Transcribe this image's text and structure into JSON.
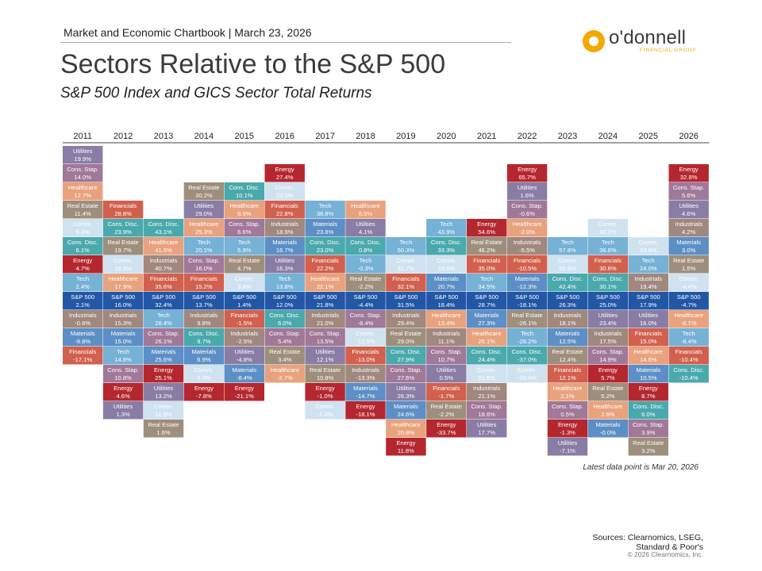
{
  "header": {
    "chartbook": "Market and Economic Chartbook | March 23, 2026",
    "logo_name": "o'donnell",
    "logo_sub": "FINANCIAL GROUP",
    "title": "Sectors Relative to the S&P 500",
    "subtitle": "S&P 500 Index and GICS Sector Total Returns"
  },
  "footer": {
    "note": "Latest data point is Mar 20, 2026",
    "sources_line1": "Sources: Clearnomics, LSEG,",
    "sources_line2": "Standard & Poor's",
    "copyright": "© 2026 Clearnomics, Inc."
  },
  "colors": {
    "Utilities": "#8a7da5",
    "Cons. Stap.": "#a07898",
    "Healthcare": "#e9a27e",
    "Real Estate": "#9e8e7c",
    "Comm.": "#d0e2f0",
    "Cons. Disc.": "#4aa9ad",
    "Energy": "#b5272f",
    "Tech": "#76b1d6",
    "S&P 500": "#2257a6",
    "Industrials": "#a0887e",
    "Materials": "#5c8fc5",
    "Financials": "#d2604e"
  },
  "chart_data": {
    "type": "table",
    "title": "Sectors Relative to the S&P 500",
    "subtitle": "S&P 500 Index and GICS Sector Total Returns",
    "benchmark": "S&P 500",
    "years": [
      {
        "year": "2011",
        "above": [
          [
            "Utilities",
            "19.9%"
          ],
          [
            "Cons. Stap.",
            "14.0%"
          ],
          [
            "Healthcare",
            "12.7%"
          ],
          [
            "Real Estate",
            "11.4%"
          ],
          [
            "Comm.",
            "6.3%"
          ],
          [
            "Cons. Disc.",
            "6.1%"
          ],
          [
            "Energy",
            "4.7%"
          ],
          [
            "Tech",
            "2.4%"
          ]
        ],
        "spx": "2.1%",
        "below": [
          [
            "Industrials",
            "-0.6%"
          ],
          [
            "Materials",
            "-9.8%"
          ],
          [
            "Financials",
            "-17.1%"
          ]
        ]
      },
      {
        "year": "2012",
        "above": [
          [
            "Financials",
            "28.8%"
          ],
          [
            "Cons. Disc.",
            "23.9%"
          ],
          [
            "Real Estate",
            "19.7%"
          ],
          [
            "Comm.",
            "18.3%"
          ],
          [
            "Healthcare",
            "17.9%"
          ]
        ],
        "spx": "16.0%",
        "below": [
          [
            "Industrials",
            "15.3%"
          ],
          [
            "Materials",
            "15.0%"
          ],
          [
            "Tech",
            "14.8%"
          ],
          [
            "Cons. Stap.",
            "10.8%"
          ],
          [
            "Energy",
            "4.6%"
          ],
          [
            "Utilities",
            "1.3%"
          ]
        ]
      },
      {
        "year": "2013",
        "above": [
          [
            "Cons. Disc.",
            "43.1%"
          ],
          [
            "Healthcare",
            "41.5%"
          ],
          [
            "Industrials",
            "40.7%"
          ],
          [
            "Financials",
            "35.6%"
          ]
        ],
        "spx": "32.4%",
        "below": [
          [
            "Tech",
            "28.4%"
          ],
          [
            "Cons. Stap.",
            "26.1%"
          ],
          [
            "Materials",
            "25.6%"
          ],
          [
            "Energy",
            "25.1%"
          ],
          [
            "Utilities",
            "13.2%"
          ],
          [
            "Comm.",
            "11.5%"
          ],
          [
            "Real Estate",
            "1.6%"
          ]
        ]
      },
      {
        "year": "2014",
        "above": [
          [
            "Real Estate",
            "30.2%"
          ],
          [
            "Utilities",
            "29.0%"
          ],
          [
            "Healthcare",
            "25.3%"
          ],
          [
            "Tech",
            "20.1%"
          ],
          [
            "Cons. Stap.",
            "16.0%"
          ],
          [
            "Financials",
            "15.2%"
          ]
        ],
        "spx": "13.7%",
        "below": [
          [
            "Industrials",
            "9.8%"
          ],
          [
            "Cons. Disc.",
            "9.7%"
          ],
          [
            "Materials",
            "6.9%"
          ],
          [
            "Comm.",
            "3.0%"
          ],
          [
            "Energy",
            "-7.8%"
          ]
        ]
      },
      {
        "year": "2015",
        "above": [
          [
            "Cons. Disc.",
            "10.1%"
          ],
          [
            "Healthcare",
            "6.9%"
          ],
          [
            "Cons. Stap.",
            "6.6%"
          ],
          [
            "Tech",
            "5.9%"
          ],
          [
            "Real Estate",
            "4.7%"
          ],
          [
            "Comm.",
            "3.4%"
          ]
        ],
        "spx": "1.4%",
        "below": [
          [
            "Financials",
            "-1.5%"
          ],
          [
            "Industrials",
            "-2.5%"
          ],
          [
            "Utilities",
            "-4.8%"
          ],
          [
            "Materials",
            "-8.4%"
          ],
          [
            "Energy",
            "-21.1%"
          ]
        ]
      },
      {
        "year": "2016",
        "above": [
          [
            "Energy",
            "27.4%"
          ],
          [
            "Comm.",
            "23.5%"
          ],
          [
            "Financials",
            "22.8%"
          ],
          [
            "Industrials",
            "18.9%"
          ],
          [
            "Materials",
            "16.7%"
          ],
          [
            "Utilities",
            "16.3%"
          ],
          [
            "Tech",
            "13.8%"
          ]
        ],
        "spx": "12.0%",
        "below": [
          [
            "Cons. Disc.",
            "6.0%"
          ],
          [
            "Cons. Stap.",
            "5.4%"
          ],
          [
            "Real Estate",
            "3.4%"
          ],
          [
            "Healthcare",
            "-2.7%"
          ]
        ]
      },
      {
        "year": "2017",
        "above": [
          [
            "Tech",
            "38.8%"
          ],
          [
            "Materials",
            "23.8%"
          ],
          [
            "Cons. Disc.",
            "23.0%"
          ],
          [
            "Financials",
            "22.2%"
          ],
          [
            "Healthcare",
            "22.1%"
          ]
        ],
        "spx": "21.8%",
        "below": [
          [
            "Industrials",
            "21.0%"
          ],
          [
            "Cons. Stap.",
            "13.5%"
          ],
          [
            "Utilities",
            "12.1%"
          ],
          [
            "Real Estate",
            "10.8%"
          ],
          [
            "Energy",
            "-1.0%"
          ],
          [
            "Comm.",
            "-1.3%"
          ]
        ]
      },
      {
        "year": "2018",
        "above": [
          [
            "Healthcare",
            "6.5%"
          ],
          [
            "Utilities",
            "4.1%"
          ],
          [
            "Cons. Disc.",
            "0.8%"
          ],
          [
            "Tech",
            "-0.3%"
          ],
          [
            "Real Estate",
            "-2.2%"
          ]
        ],
        "spx": "-4.4%",
        "below": [
          [
            "Cons. Stap.",
            "-8.4%"
          ],
          [
            "Comm.",
            "-12.5%"
          ],
          [
            "Financials",
            "-13.0%"
          ],
          [
            "Industrials",
            "-13.3%"
          ],
          [
            "Materials",
            "-14.7%"
          ],
          [
            "Energy",
            "-18.1%"
          ]
        ]
      },
      {
        "year": "2019",
        "above": [
          [
            "Tech",
            "50.3%"
          ],
          [
            "Comm.",
            "32.7%"
          ],
          [
            "Financials",
            "32.1%"
          ]
        ],
        "spx": "31.5%",
        "below": [
          [
            "Industrials",
            "29.4%"
          ],
          [
            "Real Estate",
            "29.0%"
          ],
          [
            "Cons. Disc.",
            "27.9%"
          ],
          [
            "Cons. Stap.",
            "27.6%"
          ],
          [
            "Utilities",
            "26.3%"
          ],
          [
            "Materials",
            "24.6%"
          ],
          [
            "Healthcare",
            "20.8%"
          ],
          [
            "Energy",
            "11.8%"
          ]
        ]
      },
      {
        "year": "2020",
        "above": [
          [
            "Tech",
            "43.9%"
          ],
          [
            "Cons. Disc.",
            "33.3%"
          ],
          [
            "Comm.",
            "23.6%"
          ],
          [
            "Materials",
            "20.7%"
          ]
        ],
        "spx": "18.4%",
        "below": [
          [
            "Healthcare",
            "13.4%"
          ],
          [
            "Industrials",
            "11.1%"
          ],
          [
            "Cons. Stap.",
            "10.7%"
          ],
          [
            "Utilities",
            "0.5%"
          ],
          [
            "Financials",
            "-1.7%"
          ],
          [
            "Real Estate",
            "-2.2%"
          ],
          [
            "Energy",
            "-33.7%"
          ]
        ]
      },
      {
        "year": "2021",
        "above": [
          [
            "Energy",
            "54.6%"
          ],
          [
            "Real Estate",
            "46.2%"
          ],
          [
            "Financials",
            "35.0%"
          ],
          [
            "Tech",
            "34.5%"
          ]
        ],
        "spx": "28.7%",
        "below": [
          [
            "Materials",
            "27.3%"
          ],
          [
            "Healthcare",
            "26.1%"
          ],
          [
            "Cons. Disc.",
            "24.4%"
          ],
          [
            "Comm.",
            "21.6%"
          ],
          [
            "Industrials",
            "21.1%"
          ],
          [
            "Cons. Stap.",
            "18.6%"
          ],
          [
            "Utilities",
            "17.7%"
          ]
        ]
      },
      {
        "year": "2022",
        "above": [
          [
            "Energy",
            "65.7%"
          ],
          [
            "Utilities",
            "1.6%"
          ],
          [
            "Cons. Stap.",
            "-0.6%"
          ],
          [
            "Healthcare",
            "-2.0%"
          ],
          [
            "Industrials",
            "-5.5%"
          ],
          [
            "Financials",
            "-10.5%"
          ],
          [
            "Materials",
            "-12.3%"
          ]
        ],
        "spx": "-18.1%",
        "below": [
          [
            "Real Estate",
            "-26.1%"
          ],
          [
            "Tech",
            "-28.2%"
          ],
          [
            "Cons. Disc.",
            "-37.0%"
          ],
          [
            "Comm.",
            "-39.9%"
          ]
        ]
      },
      {
        "year": "2023",
        "above": [
          [
            "Tech",
            "57.8%"
          ],
          [
            "Comm.",
            "55.8%"
          ],
          [
            "Cons. Disc.",
            "42.4%"
          ]
        ],
        "spx": "26.3%",
        "below": [
          [
            "Industrials",
            "18.1%"
          ],
          [
            "Materials",
            "12.5%"
          ],
          [
            "Real Estate",
            "12.4%"
          ],
          [
            "Financials",
            "12.1%"
          ],
          [
            "Healthcare",
            "2.1%"
          ],
          [
            "Cons. Stap.",
            "0.5%"
          ],
          [
            "Energy",
            "-1.3%"
          ],
          [
            "Utilities",
            "-7.1%"
          ]
        ]
      },
      {
        "year": "2024",
        "above": [
          [
            "Comm.",
            "40.2%"
          ],
          [
            "Tech",
            "36.6%"
          ],
          [
            "Financials",
            "30.6%"
          ],
          [
            "Cons. Disc.",
            "30.1%"
          ]
        ],
        "spx": "25.0%",
        "below": [
          [
            "Utilities",
            "23.4%"
          ],
          [
            "Industrials",
            "17.5%"
          ],
          [
            "Cons. Stap.",
            "14.9%"
          ],
          [
            "Energy",
            "5.7%"
          ],
          [
            "Real Estate",
            "5.2%"
          ],
          [
            "Healthcare",
            "2.6%"
          ],
          [
            "Materials",
            "-0.0%"
          ]
        ]
      },
      {
        "year": "2025",
        "above": [
          [
            "Comm.",
            "33.6%"
          ],
          [
            "Tech",
            "24.0%"
          ],
          [
            "Industrials",
            "19.4%"
          ]
        ],
        "spx": "17.9%",
        "below": [
          [
            "Utilities",
            "16.0%"
          ],
          [
            "Financials",
            "15.0%"
          ],
          [
            "Healthcare",
            "14.6%"
          ],
          [
            "Materials",
            "10.5%"
          ],
          [
            "Energy",
            "8.7%"
          ],
          [
            "Cons. Disc.",
            "6.0%"
          ],
          [
            "Cons. Stap.",
            "3.9%"
          ],
          [
            "Real Estate",
            "3.2%"
          ]
        ]
      },
      {
        "year": "2026",
        "above": [
          [
            "Energy",
            "32.8%"
          ],
          [
            "Cons. Stap.",
            "5.6%"
          ],
          [
            "Utilities",
            "4.6%"
          ],
          [
            "Industrials",
            "4.2%"
          ],
          [
            "Materials",
            "3.0%"
          ],
          [
            "Real Estate",
            "1.5%"
          ],
          [
            "Comm.",
            "-4.4%"
          ]
        ],
        "spx": "-4.7%",
        "below": [
          [
            "Healthcare",
            "-6.1%"
          ],
          [
            "Tech",
            "-8.4%"
          ],
          [
            "Financials",
            "-10.4%"
          ],
          [
            "Cons. Disc.",
            "-10.4%"
          ]
        ]
      }
    ]
  }
}
